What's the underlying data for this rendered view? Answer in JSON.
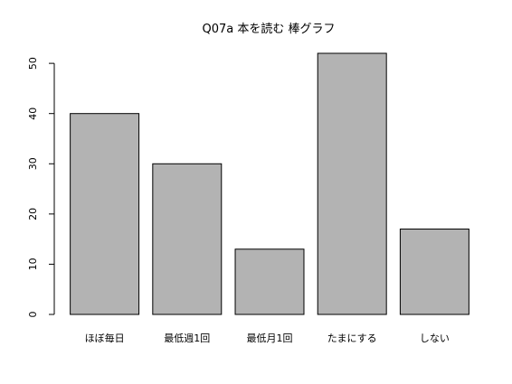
{
  "chart_data": {
    "type": "bar",
    "title": "Q07a 本を読む 棒グラフ",
    "xlabel": "",
    "ylabel": "",
    "categories": [
      "ほぼ毎日",
      "最低週1回",
      "最低月1回",
      "たまにする",
      "しない"
    ],
    "values": [
      40,
      30,
      13,
      52,
      17
    ],
    "ylim": [
      0,
      52
    ],
    "yticks": [
      0,
      10,
      20,
      30,
      40,
      50
    ],
    "grid": false,
    "legend": "none",
    "bar_color": "#b3b3b3",
    "bar_border_color": "#000000"
  }
}
